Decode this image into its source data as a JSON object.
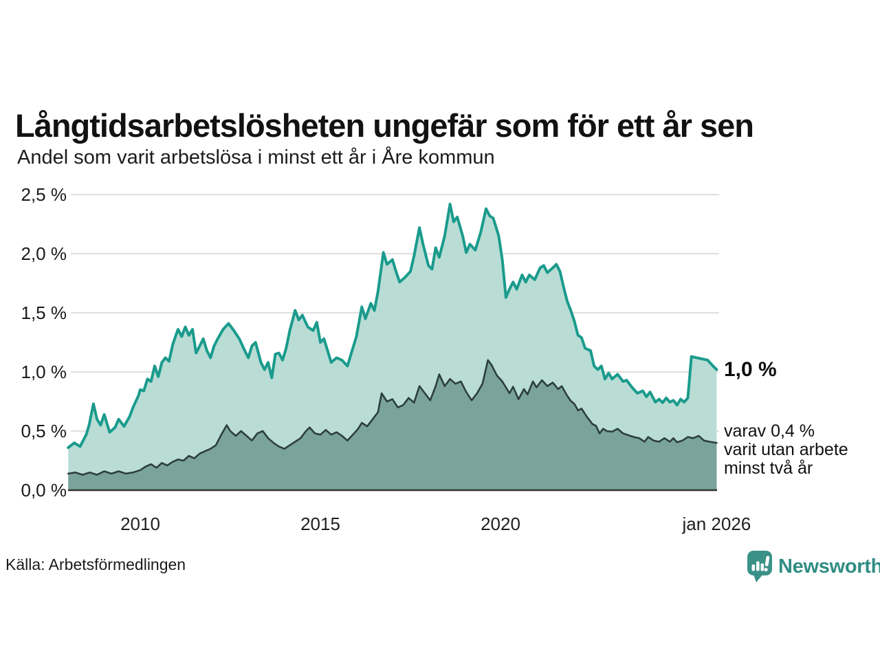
{
  "title": "Långtidsarbetslösheten ungefär som för ett år sen",
  "subtitle": "Andel som varit arbetslösa i minst ett år i Åre kommun",
  "source": "Källa: Arbetsförmedlingen",
  "branding": {
    "name": "Newsworthy",
    "logo_icon": "newsworthy-chart-bubble-icon",
    "wordmark_color": "#2f8d83",
    "icon_color": "#3a9188"
  },
  "annotations": {
    "end_value": "1,0 %",
    "detail_lines": [
      "varav 0,4 %",
      "varit utan arbete",
      "minst två år"
    ]
  },
  "colors": {
    "long_term_line": "#1a9b8c",
    "long_term_fill": "#b9ddd5",
    "two_year_line": "#2c3e3d",
    "two_year_fill": "#7aa39b",
    "gridline": "#dedede",
    "axis_line": "#333333"
  },
  "chart_data": {
    "type": "area",
    "title": "Långtidsarbetslösheten ungefär som för ett år sen",
    "subtitle": "Andel som varit arbetslösa i minst ett år i Åre kommun",
    "unit": "%",
    "x_domain": [
      2008.0,
      2026.0
    ],
    "y_domain": [
      0,
      2.5
    ],
    "grid": true,
    "y_ticks": [
      {
        "label": "0,0 %",
        "value": 0.0
      },
      {
        "label": "0,5 %",
        "value": 0.5
      },
      {
        "label": "1,0 %",
        "value": 1.0
      },
      {
        "label": "1,5 %",
        "value": 1.5
      },
      {
        "label": "2,0 %",
        "value": 2.0
      },
      {
        "label": "2,5 %",
        "value": 2.5
      }
    ],
    "x_ticks": [
      {
        "label": "2010",
        "year": 2010
      },
      {
        "label": "2015",
        "year": 2015
      },
      {
        "label": "2020",
        "year": 2020
      },
      {
        "label": "jan 2026",
        "year": 2026
      }
    ],
    "series": [
      {
        "name": "Arbetslösa minst ett år",
        "latest_value_label": "1,0 %",
        "stroke": "#1a9b8c",
        "fill": "#b9ddd5",
        "stroke_width": 4,
        "points": [
          [
            2008.0,
            0.36
          ],
          [
            2008.17,
            0.4
          ],
          [
            2008.33,
            0.37
          ],
          [
            2008.5,
            0.47
          ],
          [
            2008.58,
            0.55
          ],
          [
            2008.7,
            0.73
          ],
          [
            2008.8,
            0.6
          ],
          [
            2008.9,
            0.55
          ],
          [
            2009.0,
            0.64
          ],
          [
            2009.15,
            0.49
          ],
          [
            2009.3,
            0.53
          ],
          [
            2009.4,
            0.6
          ],
          [
            2009.55,
            0.54
          ],
          [
            2009.7,
            0.62
          ],
          [
            2009.8,
            0.7
          ],
          [
            2009.95,
            0.8
          ],
          [
            2010.0,
            0.85
          ],
          [
            2010.1,
            0.84
          ],
          [
            2010.2,
            0.94
          ],
          [
            2010.3,
            0.92
          ],
          [
            2010.4,
            1.05
          ],
          [
            2010.5,
            0.96
          ],
          [
            2010.6,
            1.08
          ],
          [
            2010.7,
            1.12
          ],
          [
            2010.8,
            1.09
          ],
          [
            2010.9,
            1.23
          ],
          [
            2011.0,
            1.32
          ],
          [
            2011.05,
            1.36
          ],
          [
            2011.15,
            1.3
          ],
          [
            2011.25,
            1.38
          ],
          [
            2011.35,
            1.31
          ],
          [
            2011.45,
            1.36
          ],
          [
            2011.55,
            1.16
          ],
          [
            2011.65,
            1.22
          ],
          [
            2011.75,
            1.28
          ],
          [
            2011.85,
            1.18
          ],
          [
            2011.95,
            1.12
          ],
          [
            2012.05,
            1.22
          ],
          [
            2012.15,
            1.28
          ],
          [
            2012.3,
            1.36
          ],
          [
            2012.45,
            1.41
          ],
          [
            2012.6,
            1.35
          ],
          [
            2012.75,
            1.28
          ],
          [
            2012.9,
            1.18
          ],
          [
            2013.0,
            1.12
          ],
          [
            2013.1,
            1.22
          ],
          [
            2013.2,
            1.25
          ],
          [
            2013.35,
            1.08
          ],
          [
            2013.45,
            1.02
          ],
          [
            2013.55,
            1.08
          ],
          [
            2013.65,
            0.95
          ],
          [
            2013.75,
            1.15
          ],
          [
            2013.85,
            1.16
          ],
          [
            2013.95,
            1.1
          ],
          [
            2014.05,
            1.2
          ],
          [
            2014.15,
            1.35
          ],
          [
            2014.3,
            1.52
          ],
          [
            2014.4,
            1.44
          ],
          [
            2014.5,
            1.48
          ],
          [
            2014.65,
            1.38
          ],
          [
            2014.8,
            1.35
          ],
          [
            2014.9,
            1.42
          ],
          [
            2015.0,
            1.25
          ],
          [
            2015.1,
            1.28
          ],
          [
            2015.2,
            1.18
          ],
          [
            2015.3,
            1.08
          ],
          [
            2015.45,
            1.12
          ],
          [
            2015.6,
            1.1
          ],
          [
            2015.75,
            1.05
          ],
          [
            2015.9,
            1.2
          ],
          [
            2016.0,
            1.3
          ],
          [
            2016.15,
            1.55
          ],
          [
            2016.25,
            1.45
          ],
          [
            2016.4,
            1.58
          ],
          [
            2016.5,
            1.52
          ],
          [
            2016.6,
            1.68
          ],
          [
            2016.75,
            2.01
          ],
          [
            2016.85,
            1.91
          ],
          [
            2017.0,
            1.95
          ],
          [
            2017.1,
            1.85
          ],
          [
            2017.2,
            1.76
          ],
          [
            2017.35,
            1.8
          ],
          [
            2017.5,
            1.85
          ],
          [
            2017.6,
            1.98
          ],
          [
            2017.75,
            2.22
          ],
          [
            2017.85,
            2.08
          ],
          [
            2018.0,
            1.9
          ],
          [
            2018.1,
            1.87
          ],
          [
            2018.2,
            2.05
          ],
          [
            2018.3,
            1.97
          ],
          [
            2018.45,
            2.15
          ],
          [
            2018.6,
            2.42
          ],
          [
            2018.7,
            2.27
          ],
          [
            2018.8,
            2.31
          ],
          [
            2018.95,
            2.15
          ],
          [
            2019.05,
            2.01
          ],
          [
            2019.15,
            2.08
          ],
          [
            2019.3,
            2.03
          ],
          [
            2019.45,
            2.18
          ],
          [
            2019.6,
            2.38
          ],
          [
            2019.7,
            2.32
          ],
          [
            2019.8,
            2.3
          ],
          [
            2019.95,
            2.15
          ],
          [
            2020.05,
            1.95
          ],
          [
            2020.15,
            1.63
          ],
          [
            2020.25,
            1.7
          ],
          [
            2020.35,
            1.76
          ],
          [
            2020.45,
            1.7
          ],
          [
            2020.6,
            1.82
          ],
          [
            2020.7,
            1.76
          ],
          [
            2020.8,
            1.82
          ],
          [
            2020.95,
            1.78
          ],
          [
            2021.1,
            1.88
          ],
          [
            2021.2,
            1.9
          ],
          [
            2021.3,
            1.84
          ],
          [
            2021.45,
            1.88
          ],
          [
            2021.55,
            1.91
          ],
          [
            2021.65,
            1.85
          ],
          [
            2021.75,
            1.72
          ],
          [
            2021.85,
            1.6
          ],
          [
            2021.95,
            1.52
          ],
          [
            2022.05,
            1.43
          ],
          [
            2022.15,
            1.31
          ],
          [
            2022.25,
            1.29
          ],
          [
            2022.35,
            1.2
          ],
          [
            2022.5,
            1.18
          ],
          [
            2022.6,
            1.05
          ],
          [
            2022.7,
            1.02
          ],
          [
            2022.8,
            1.05
          ],
          [
            2022.9,
            0.94
          ],
          [
            2023.0,
            0.99
          ],
          [
            2023.1,
            0.94
          ],
          [
            2023.25,
            0.98
          ],
          [
            2023.4,
            0.92
          ],
          [
            2023.5,
            0.93
          ],
          [
            2023.65,
            0.87
          ],
          [
            2023.8,
            0.82
          ],
          [
            2023.95,
            0.84
          ],
          [
            2024.05,
            0.79
          ],
          [
            2024.15,
            0.83
          ],
          [
            2024.3,
            0.745
          ],
          [
            2024.4,
            0.77
          ],
          [
            2024.5,
            0.74
          ],
          [
            2024.6,
            0.78
          ],
          [
            2024.7,
            0.745
          ],
          [
            2024.8,
            0.76
          ],
          [
            2024.9,
            0.72
          ],
          [
            2025.0,
            0.77
          ],
          [
            2025.1,
            0.745
          ],
          [
            2025.2,
            0.78
          ],
          [
            2025.3,
            1.13
          ],
          [
            2025.45,
            1.12
          ],
          [
            2025.6,
            1.11
          ],
          [
            2025.75,
            1.1
          ],
          [
            2025.9,
            1.05
          ],
          [
            2026.0,
            1.02
          ]
        ]
      },
      {
        "name": "varav utan arbete minst två år",
        "latest_value_label": "varav 0,4 %",
        "stroke": "#2c3e3d",
        "fill": "#7aa39b",
        "stroke_width": 2.6,
        "points": [
          [
            2008.0,
            0.14
          ],
          [
            2008.2,
            0.15
          ],
          [
            2008.4,
            0.13
          ],
          [
            2008.6,
            0.15
          ],
          [
            2008.8,
            0.13
          ],
          [
            2009.0,
            0.16
          ],
          [
            2009.2,
            0.14
          ],
          [
            2009.4,
            0.16
          ],
          [
            2009.6,
            0.14
          ],
          [
            2009.8,
            0.15
          ],
          [
            2010.0,
            0.17
          ],
          [
            2010.15,
            0.2
          ],
          [
            2010.3,
            0.22
          ],
          [
            2010.45,
            0.19
          ],
          [
            2010.6,
            0.23
          ],
          [
            2010.75,
            0.21
          ],
          [
            2010.9,
            0.24
          ],
          [
            2011.05,
            0.26
          ],
          [
            2011.2,
            0.25
          ],
          [
            2011.35,
            0.29
          ],
          [
            2011.5,
            0.27
          ],
          [
            2011.65,
            0.31
          ],
          [
            2011.8,
            0.33
          ],
          [
            2011.95,
            0.35
          ],
          [
            2012.1,
            0.38
          ],
          [
            2012.25,
            0.47
          ],
          [
            2012.4,
            0.55
          ],
          [
            2012.5,
            0.5
          ],
          [
            2012.65,
            0.46
          ],
          [
            2012.8,
            0.5
          ],
          [
            2012.95,
            0.46
          ],
          [
            2013.1,
            0.42
          ],
          [
            2013.25,
            0.48
          ],
          [
            2013.4,
            0.5
          ],
          [
            2013.55,
            0.44
          ],
          [
            2013.7,
            0.4
          ],
          [
            2013.85,
            0.37
          ],
          [
            2014.0,
            0.35
          ],
          [
            2014.15,
            0.38
          ],
          [
            2014.3,
            0.41
          ],
          [
            2014.45,
            0.44
          ],
          [
            2014.6,
            0.5
          ],
          [
            2014.7,
            0.53
          ],
          [
            2014.85,
            0.48
          ],
          [
            2015.0,
            0.47
          ],
          [
            2015.15,
            0.51
          ],
          [
            2015.3,
            0.47
          ],
          [
            2015.45,
            0.49
          ],
          [
            2015.6,
            0.46
          ],
          [
            2015.75,
            0.42
          ],
          [
            2015.9,
            0.47
          ],
          [
            2016.05,
            0.52
          ],
          [
            2016.15,
            0.57
          ],
          [
            2016.3,
            0.54
          ],
          [
            2016.45,
            0.6
          ],
          [
            2016.6,
            0.66
          ],
          [
            2016.7,
            0.82
          ],
          [
            2016.85,
            0.75
          ],
          [
            2017.0,
            0.77
          ],
          [
            2017.15,
            0.7
          ],
          [
            2017.3,
            0.72
          ],
          [
            2017.45,
            0.78
          ],
          [
            2017.6,
            0.74
          ],
          [
            2017.75,
            0.88
          ],
          [
            2017.9,
            0.82
          ],
          [
            2018.05,
            0.76
          ],
          [
            2018.2,
            0.88
          ],
          [
            2018.3,
            0.98
          ],
          [
            2018.45,
            0.88
          ],
          [
            2018.6,
            0.94
          ],
          [
            2018.75,
            0.9
          ],
          [
            2018.9,
            0.92
          ],
          [
            2019.05,
            0.83
          ],
          [
            2019.2,
            0.76
          ],
          [
            2019.35,
            0.82
          ],
          [
            2019.5,
            0.9
          ],
          [
            2019.65,
            1.1
          ],
          [
            2019.75,
            1.06
          ],
          [
            2019.9,
            0.97
          ],
          [
            2020.05,
            0.92
          ],
          [
            2020.15,
            0.87
          ],
          [
            2020.25,
            0.82
          ],
          [
            2020.35,
            0.875
          ],
          [
            2020.5,
            0.77
          ],
          [
            2020.65,
            0.855
          ],
          [
            2020.75,
            0.81
          ],
          [
            2020.9,
            0.92
          ],
          [
            2021.0,
            0.87
          ],
          [
            2021.15,
            0.93
          ],
          [
            2021.3,
            0.88
          ],
          [
            2021.45,
            0.91
          ],
          [
            2021.6,
            0.855
          ],
          [
            2021.7,
            0.88
          ],
          [
            2021.85,
            0.8
          ],
          [
            2021.95,
            0.755
          ],
          [
            2022.05,
            0.73
          ],
          [
            2022.15,
            0.675
          ],
          [
            2022.25,
            0.69
          ],
          [
            2022.4,
            0.62
          ],
          [
            2022.55,
            0.56
          ],
          [
            2022.65,
            0.545
          ],
          [
            2022.75,
            0.48
          ],
          [
            2022.85,
            0.52
          ],
          [
            2022.95,
            0.5
          ],
          [
            2023.1,
            0.495
          ],
          [
            2023.25,
            0.52
          ],
          [
            2023.4,
            0.48
          ],
          [
            2023.55,
            0.465
          ],
          [
            2023.7,
            0.45
          ],
          [
            2023.85,
            0.44
          ],
          [
            2024.0,
            0.41
          ],
          [
            2024.1,
            0.45
          ],
          [
            2024.25,
            0.42
          ],
          [
            2024.4,
            0.41
          ],
          [
            2024.55,
            0.44
          ],
          [
            2024.7,
            0.41
          ],
          [
            2024.8,
            0.44
          ],
          [
            2024.9,
            0.405
          ],
          [
            2025.05,
            0.42
          ],
          [
            2025.2,
            0.45
          ],
          [
            2025.35,
            0.44
          ],
          [
            2025.5,
            0.46
          ],
          [
            2025.65,
            0.42
          ],
          [
            2025.8,
            0.41
          ],
          [
            2026.0,
            0.4
          ]
        ]
      }
    ]
  }
}
